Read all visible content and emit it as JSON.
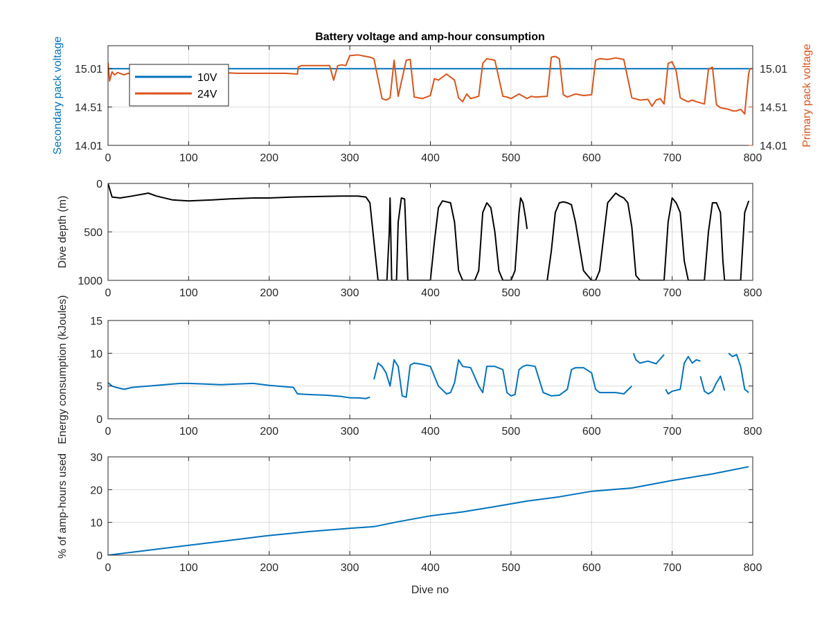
{
  "figure": {
    "title": "Battery voltage and amp-hour consumption",
    "xlabel": "Dive no"
  },
  "colors": {
    "blue": "#0072BD",
    "orange": "#D95319",
    "black": "#000000",
    "axis": "#262626",
    "grid": "#dcdcdc"
  },
  "chart_data": [
    {
      "type": "line",
      "title": "Battery voltage and amp-hour consumption",
      "xlabel": "",
      "ylabel": "Secondary pack voltage",
      "ylabel_right": "Primary pack voltage",
      "xlim": [
        0,
        800
      ],
      "ylim": [
        14.01,
        15.31
      ],
      "ylim_right": [
        14.01,
        15.31
      ],
      "xticks": [
        0,
        100,
        200,
        300,
        400,
        500,
        600,
        700,
        800
      ],
      "yticks": [
        14.01,
        14.51,
        15.01
      ],
      "ytick_labels": [
        "14.01",
        "14.51",
        "15.01"
      ],
      "ytick_labels_right": [
        "14.01",
        "14.51",
        "15.01"
      ],
      "grid": true,
      "legend": {
        "placement": "top-left",
        "entries": [
          "10V",
          "24V"
        ]
      },
      "series": [
        {
          "name": "10V",
          "axis": "left",
          "color": "#0072BD",
          "x": [
            0,
            800
          ],
          "y": [
            15.01,
            15.01
          ]
        },
        {
          "name": "24V",
          "axis": "right",
          "color": "#D95319",
          "x": [
            0,
            2,
            5,
            8,
            12,
            20,
            25,
            30,
            40,
            50,
            60,
            80,
            100,
            120,
            140,
            160,
            180,
            200,
            220,
            235,
            236,
            240,
            260,
            275,
            280,
            285,
            290,
            295,
            300,
            310,
            320,
            325,
            330,
            340,
            345,
            350,
            355,
            360,
            370,
            375,
            380,
            390,
            400,
            405,
            410,
            420,
            430,
            435,
            440,
            445,
            450,
            460,
            465,
            470,
            480,
            490,
            495,
            500,
            510,
            515,
            520,
            525,
            530,
            545,
            550,
            555,
            560,
            565,
            570,
            575,
            580,
            585,
            590,
            600,
            605,
            610,
            620,
            630,
            640,
            650,
            660,
            670,
            675,
            680,
            685,
            690,
            695,
            700,
            705,
            710,
            715,
            720,
            725,
            730,
            740,
            745,
            750,
            755,
            760,
            770,
            775,
            780,
            785,
            790,
            793,
            795,
            797
          ],
          "y": [
            15.09,
            14.85,
            14.97,
            14.93,
            14.96,
            14.93,
            14.95,
            14.94,
            14.95,
            14.96,
            14.96,
            14.96,
            14.95,
            14.96,
            14.96,
            14.95,
            14.95,
            14.95,
            14.95,
            14.94,
            15.03,
            15.05,
            15.05,
            15.05,
            14.86,
            15.05,
            15.06,
            15.05,
            15.18,
            15.19,
            15.17,
            15.16,
            15.14,
            14.62,
            14.6,
            14.63,
            15.12,
            14.65,
            15.12,
            15.13,
            14.64,
            14.62,
            14.66,
            14.88,
            14.86,
            14.94,
            14.86,
            14.63,
            14.58,
            14.68,
            14.62,
            14.65,
            15.08,
            15.14,
            15.12,
            14.65,
            14.64,
            14.62,
            14.68,
            14.65,
            14.62,
            14.65,
            14.64,
            14.65,
            15.16,
            15.17,
            15.14,
            14.67,
            14.64,
            14.66,
            14.68,
            14.67,
            14.66,
            14.67,
            15.12,
            15.14,
            15.13,
            15.15,
            15.13,
            14.63,
            14.6,
            14.61,
            14.52,
            14.6,
            14.62,
            14.55,
            15.08,
            15.1,
            14.98,
            14.63,
            14.6,
            14.58,
            14.6,
            14.58,
            14.55,
            15.0,
            15.03,
            14.54,
            14.5,
            14.48,
            14.46,
            14.46,
            14.48,
            14.42,
            14.75,
            14.95,
            15.02
          ]
        }
      ]
    },
    {
      "type": "line",
      "title": "",
      "xlabel": "",
      "ylabel": "Dive depth (m)",
      "xlim": [
        0,
        800
      ],
      "ylim": [
        1000,
        0
      ],
      "reversed_y": true,
      "xticks": [
        0,
        100,
        200,
        300,
        400,
        500,
        600,
        700,
        800
      ],
      "yticks": [
        0,
        500,
        1000
      ],
      "ytick_labels": [
        "0",
        "500",
        "1000"
      ],
      "grid": true,
      "series": [
        {
          "color": "#000000",
          "segments": [
            {
              "x": [
                0,
                5,
                15,
                30,
                50,
                60,
                80,
                100,
                130,
                150,
                180,
                200,
                230,
                260,
                290,
                310,
                320,
                325,
                330,
                335,
                340,
                343,
                346,
                349,
                350,
                352,
                354,
                356,
                358,
                360,
                364,
                368,
                372,
                377,
                380,
                385,
                390,
                395,
                400,
                405,
                410,
                415,
                425,
                430,
                435,
                440,
                450,
                455,
                460,
                465,
                470,
                475,
                480,
                485,
                490,
                495,
                500,
                505,
                510,
                512,
                515,
                518,
                520
              ],
              "y": [
                0,
                140,
                150,
                130,
                100,
                130,
                170,
                180,
                170,
                160,
                150,
                150,
                140,
                135,
                130,
                130,
                140,
                200,
                600,
                1000,
                1000,
                1000,
                1000,
                500,
                150,
                1000,
                1000,
                1000,
                1000,
                400,
                150,
                160,
                1000,
                1000,
                1000,
                1000,
                1000,
                1000,
                1000,
                600,
                250,
                180,
                200,
                400,
                900,
                1000,
                1000,
                1000,
                900,
                300,
                200,
                250,
                500,
                900,
                1000,
                1000,
                1000,
                900,
                300,
                150,
                200,
                350,
                470
              ]
            },
            {
              "x": [
                545,
                550,
                555,
                560,
                565,
                570,
                575,
                580,
                590,
                600,
                603,
                605,
                610,
                620,
                630,
                635,
                640,
                645,
                650,
                655,
                660,
                680,
                690,
                695,
                700,
                705,
                710,
                715,
                720,
                730,
                740,
                745,
                750,
                755,
                760,
                763,
                765,
                770,
                780,
                785,
                790,
                795
              ],
              "y": [
                1000,
                700,
                300,
                200,
                190,
                200,
                220,
                400,
                900,
                1000,
                1000,
                1000,
                900,
                200,
                100,
                130,
                150,
                200,
                450,
                950,
                1000,
                1000,
                1000,
                400,
                150,
                200,
                300,
                800,
                1000,
                1000,
                1000,
                500,
                200,
                200,
                300,
                800,
                1000,
                1000,
                1000,
                1000,
                300,
                180
              ]
            }
          ]
        }
      ]
    },
    {
      "type": "line",
      "title": "",
      "xlabel": "",
      "ylabel": "Energy consumption (kJoules)",
      "xlim": [
        0,
        800
      ],
      "ylim": [
        0,
        15
      ],
      "xticks": [
        0,
        100,
        200,
        300,
        400,
        500,
        600,
        700,
        800
      ],
      "yticks": [
        0,
        5,
        10,
        15
      ],
      "ytick_labels": [
        "0",
        "5",
        "10",
        "15"
      ],
      "grid": true,
      "series": [
        {
          "color": "#0072BD",
          "segments": [
            {
              "x": [
                0,
                5,
                10,
                20,
                30,
                40,
                50,
                60,
                70,
                80,
                90,
                100,
                120,
                140,
                160,
                180,
                200,
                220,
                230,
                235,
                250,
                270,
                290,
                300,
                310,
                320,
                325
              ],
              "y": [
                5.5,
                5.0,
                4.8,
                4.5,
                4.8,
                4.9,
                5.0,
                5.1,
                5.2,
                5.3,
                5.4,
                5.4,
                5.3,
                5.2,
                5.3,
                5.4,
                5.1,
                4.9,
                4.8,
                3.8,
                3.7,
                3.6,
                3.4,
                3.2,
                3.2,
                3.1,
                3.3
              ]
            },
            {
              "x": [
                330,
                335,
                340,
                345,
                350,
                355,
                360,
                365,
                370,
                375,
                380,
                390,
                400,
                410,
                420,
                425,
                430,
                435,
                440,
                450,
                460,
                465,
                470,
                480,
                490,
                495,
                500,
                505,
                510,
                515,
                520,
                530,
                540,
                550,
                560,
                570,
                575,
                580,
                590,
                600,
                605,
                610,
                620,
                630,
                640,
                650
              ],
              "y": [
                6.0,
                8.5,
                8.0,
                7.0,
                5.0,
                9.0,
                8.0,
                3.5,
                3.3,
                8.2,
                8.5,
                8.3,
                8.0,
                5.0,
                3.8,
                4.0,
                5.5,
                9.0,
                8.0,
                7.8,
                5.0,
                4.0,
                8.0,
                8.0,
                7.5,
                4.0,
                3.5,
                3.7,
                7.5,
                8.0,
                8.2,
                8.0,
                4.0,
                3.5,
                3.6,
                4.5,
                7.5,
                7.8,
                7.8,
                7.0,
                4.5,
                4.0,
                4.0,
                4.0,
                3.8,
                5.0
              ]
            },
            {
              "x": [
                652,
                655,
                660,
                670,
                680,
                690
              ],
              "y": [
                10.0,
                9.0,
                8.5,
                8.8,
                8.4,
                9.8
              ]
            },
            {
              "x": [
                692,
                695,
                700,
                710,
                715,
                720,
                725,
                730,
                735
              ],
              "y": [
                4.5,
                3.8,
                4.2,
                4.5,
                8.5,
                9.5,
                8.5,
                9.0,
                8.8
              ]
            },
            {
              "x": [
                735,
                740,
                745,
                750,
                755,
                760,
                765
              ],
              "y": [
                6.5,
                4.2,
                3.8,
                4.2,
                5.5,
                6.5,
                4.3
              ]
            },
            {
              "x": [
                770,
                775,
                780,
                785,
                790,
                795
              ],
              "y": [
                10.0,
                9.5,
                9.8,
                8.0,
                4.5,
                4.0
              ]
            }
          ]
        }
      ]
    },
    {
      "type": "line",
      "title": "",
      "xlabel": "Dive no",
      "ylabel": "% of amp-hours used",
      "xlim": [
        0,
        800
      ],
      "ylim": [
        0,
        30
      ],
      "xticks": [
        0,
        100,
        200,
        300,
        400,
        500,
        600,
        700,
        800
      ],
      "yticks": [
        0,
        10,
        20,
        30
      ],
      "ytick_labels": [
        "0",
        "10",
        "20",
        "30"
      ],
      "grid": true,
      "series": [
        {
          "color": "#0072BD",
          "x": [
            0,
            50,
            100,
            150,
            200,
            250,
            300,
            330,
            360,
            400,
            440,
            480,
            520,
            560,
            600,
            650,
            700,
            750,
            795
          ],
          "y": [
            0,
            1.5,
            3.0,
            4.5,
            6.0,
            7.2,
            8.2,
            8.7,
            10.2,
            12.0,
            13.2,
            14.8,
            16.5,
            17.8,
            19.5,
            20.5,
            22.8,
            24.8,
            27.0
          ]
        }
      ]
    }
  ]
}
